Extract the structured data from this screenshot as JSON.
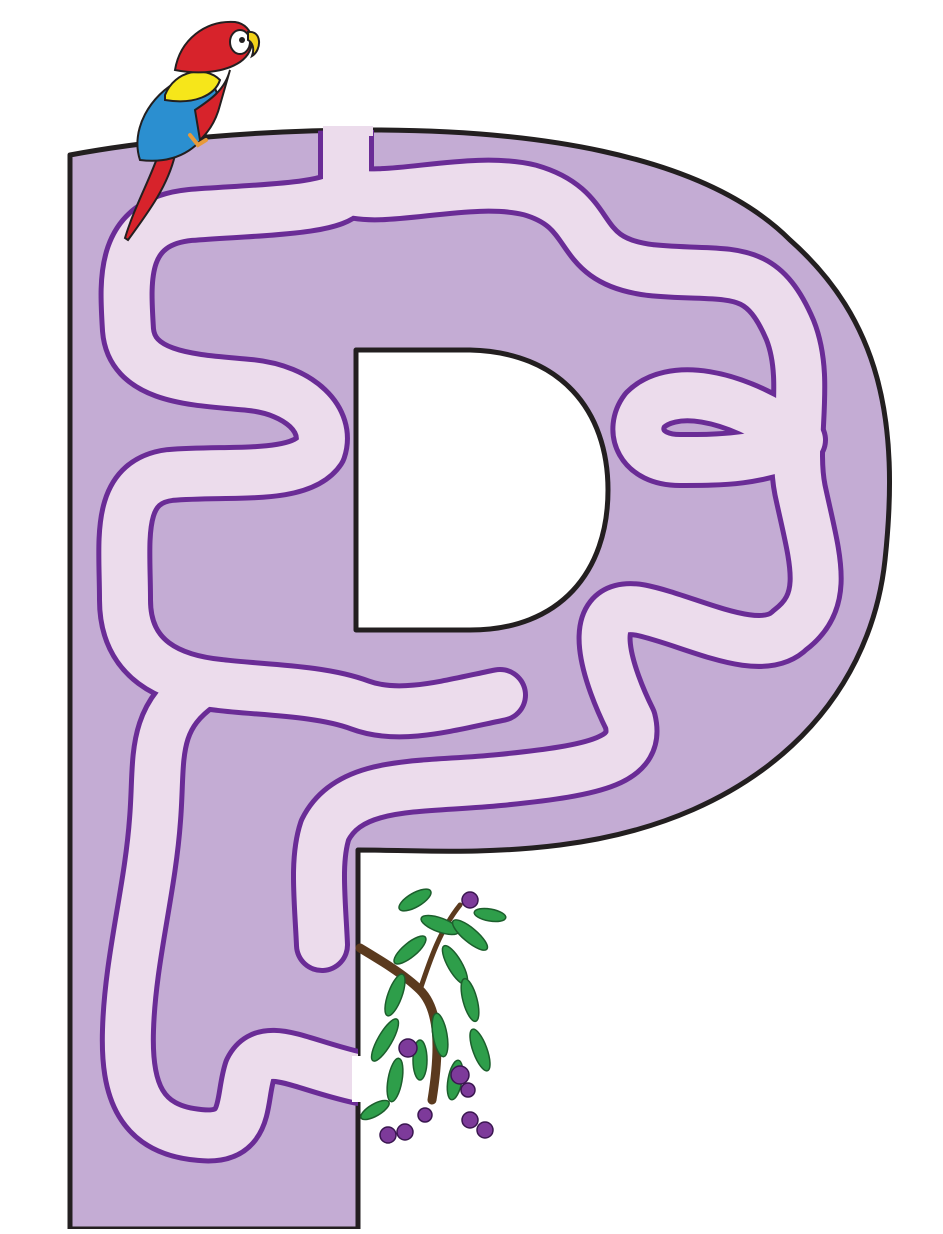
{
  "maze": {
    "letter": "P",
    "start": "parrot-icon",
    "goal": "fruit-branch-icon"
  },
  "colors": {
    "letter_fill": "#c4acd4",
    "letter_outline": "#231f20",
    "path_fill": "#ecdcec",
    "path_edge": "#6a2c96",
    "background": "#ffffff"
  }
}
